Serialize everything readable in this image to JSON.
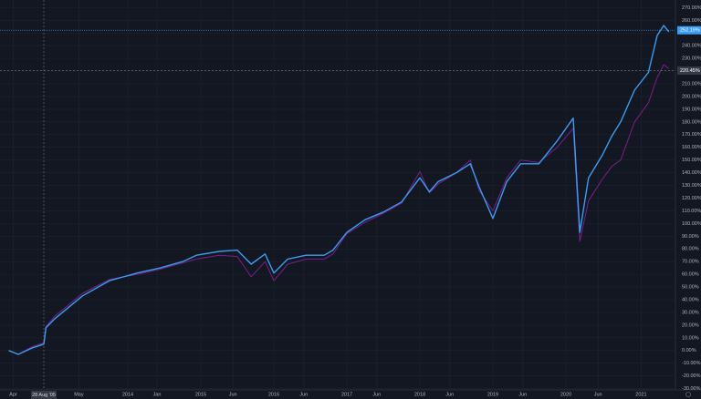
{
  "chart_data": {
    "type": "line",
    "x": [
      2012.37,
      2012.5,
      2012.69,
      2012.85,
      2012.88,
      2013.0,
      2013.38,
      2013.75,
      2014.13,
      2014.44,
      2014.75,
      2014.94,
      2015.25,
      2015.5,
      2015.69,
      2015.88,
      2016.0,
      2016.19,
      2016.44,
      2016.69,
      2016.81,
      2017.0,
      2017.25,
      2017.5,
      2017.75,
      2018.0,
      2018.13,
      2018.25,
      2018.5,
      2018.69,
      2018.81,
      2019.0,
      2019.19,
      2019.38,
      2019.63,
      2019.88,
      2020.1,
      2020.19,
      2020.31,
      2020.5,
      2020.63,
      2020.75,
      2020.94,
      2021.13,
      2021.25,
      2021.34,
      2021.41
    ],
    "series": [
      {
        "name": "Blue",
        "color": "#3b9cf0",
        "values": [
          0,
          -3,
          2,
          5,
          18,
          25,
          43,
          55,
          61,
          65,
          70,
          75,
          78,
          79,
          68,
          76,
          61,
          72,
          75,
          75,
          79,
          93,
          103,
          109,
          117,
          136,
          125,
          133,
          140,
          147,
          129,
          104,
          133,
          147,
          147,
          165,
          183,
          93,
          136,
          154,
          169,
          180,
          205,
          219,
          248,
          256,
          251
        ],
        "last_value": {
          "value": 252.19,
          "label": "252.19%"
        }
      },
      {
        "name": "Purple",
        "color": "#7a1f8c",
        "values": [
          0,
          -3,
          3,
          6,
          19,
          27,
          45,
          56,
          60,
          64,
          69,
          72,
          75,
          74,
          58,
          70,
          55,
          68,
          72,
          72,
          76,
          92,
          101,
          108,
          116,
          141,
          124,
          131,
          140,
          150,
          126,
          110,
          136,
          150,
          148,
          160,
          175,
          86,
          118,
          135,
          145,
          150,
          180,
          195,
          215,
          225,
          222
        ],
        "last_value": {
          "value": 220.45,
          "label": "220.45%"
        }
      }
    ],
    "crosshair": {
      "x": 2012.85,
      "label": "28 Aug '05"
    },
    "xlim": [
      2012.25,
      2021.5
    ],
    "ylim": [
      -31,
      276
    ],
    "xticks": [
      {
        "value": 2012.43,
        "label": "Apr"
      },
      {
        "value": 2013.33,
        "label": "May"
      },
      {
        "value": 2014.0,
        "label": "2014"
      },
      {
        "value": 2014.4,
        "label": "Jan"
      },
      {
        "value": 2015.0,
        "label": "2015"
      },
      {
        "value": 2015.44,
        "label": "Jun"
      },
      {
        "value": 2016.0,
        "label": "2016"
      },
      {
        "value": 2016.41,
        "label": "Jun"
      },
      {
        "value": 2017.0,
        "label": "2017"
      },
      {
        "value": 2017.41,
        "label": "Jun"
      },
      {
        "value": 2018.0,
        "label": "2018"
      },
      {
        "value": 2018.41,
        "label": "Jun"
      },
      {
        "value": 2019.0,
        "label": "2019"
      },
      {
        "value": 2019.41,
        "label": "Jun"
      },
      {
        "value": 2020.0,
        "label": "2020"
      },
      {
        "value": 2020.44,
        "label": "Jun"
      },
      {
        "value": 2021.03,
        "label": "2021"
      }
    ],
    "yticks": [
      {
        "value": -30,
        "label": "-30.00%"
      },
      {
        "value": -20,
        "label": "-20.00%"
      },
      {
        "value": -10,
        "label": "-10.00%"
      },
      {
        "value": 0,
        "label": "0.00%"
      },
      {
        "value": 10,
        "label": "10.00%"
      },
      {
        "value": 20,
        "label": "20.00%"
      },
      {
        "value": 30,
        "label": "30.00%"
      },
      {
        "value": 40,
        "label": "40.00%"
      },
      {
        "value": 50,
        "label": "50.00%"
      },
      {
        "value": 60,
        "label": "60.00%"
      },
      {
        "value": 70,
        "label": "70.00%"
      },
      {
        "value": 80,
        "label": "80.00%"
      },
      {
        "value": 90,
        "label": "90.00%"
      },
      {
        "value": 100,
        "label": "100.00%"
      },
      {
        "value": 110,
        "label": "110.00%"
      },
      {
        "value": 120,
        "label": "120.00%"
      },
      {
        "value": 130,
        "label": "130.00%"
      },
      {
        "value": 140,
        "label": "140.00%"
      },
      {
        "value": 150,
        "label": "150.00%"
      },
      {
        "value": 160,
        "label": "160.00%"
      },
      {
        "value": 170,
        "label": "170.00%"
      },
      {
        "value": 180,
        "label": "180.00%"
      },
      {
        "value": 190,
        "label": "190.00%"
      },
      {
        "value": 200,
        "label": "200.00%"
      },
      {
        "value": 210,
        "label": "210.00%"
      },
      {
        "value": 220,
        "label": "220.00%"
      },
      {
        "value": 230,
        "label": "230.00%"
      },
      {
        "value": 240,
        "label": "240.00%"
      },
      {
        "value": 250,
        "label": "250.00%"
      },
      {
        "value": 260,
        "label": "260.00%"
      },
      {
        "value": 270,
        "label": "270.00%"
      }
    ],
    "grid": true
  }
}
